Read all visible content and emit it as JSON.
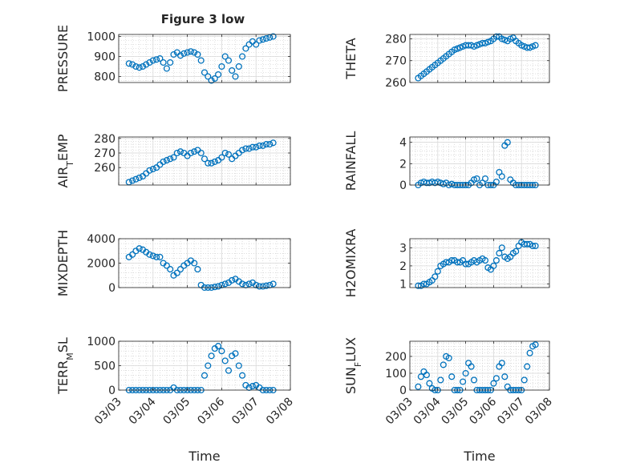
{
  "figure": {
    "title": "Figure 3 low"
  },
  "series_color": "#0072BD",
  "chart_data": [
    {
      "id": "pressure",
      "type": "scatter",
      "title": "Figure 3 low",
      "xlabel": "",
      "ylabel": "PRESSURE",
      "ylim": [
        770,
        1010
      ],
      "yticks": [
        800,
        900,
        1000
      ],
      "yticklabels": [
        "800",
        "900",
        "1000"
      ],
      "xlim": [
        "03/03",
        "03/08"
      ],
      "xticklabels": [
        "03/03",
        "03/04",
        "03/05",
        "03/06",
        "03/07",
        "03/08"
      ],
      "grid": true,
      "x": [
        3.3,
        3.4,
        3.5,
        3.6,
        3.7,
        3.8,
        3.9,
        4.0,
        4.1,
        4.2,
        4.3,
        4.4,
        4.5,
        4.6,
        4.7,
        4.8,
        4.9,
        5.0,
        5.1,
        5.2,
        5.3,
        5.4,
        5.5,
        5.6,
        5.7,
        5.8,
        5.9,
        6.0,
        6.1,
        6.2,
        6.3,
        6.4,
        6.5,
        6.6,
        6.7,
        6.8,
        6.9,
        7.0,
        7.1,
        7.2,
        7.3,
        7.4,
        7.5
      ],
      "y": [
        865,
        860,
        850,
        845,
        850,
        860,
        870,
        880,
        885,
        890,
        870,
        840,
        870,
        910,
        920,
        905,
        915,
        920,
        925,
        920,
        910,
        880,
        820,
        800,
        780,
        790,
        810,
        850,
        900,
        880,
        830,
        800,
        850,
        900,
        940,
        960,
        975,
        960,
        980,
        985,
        990,
        995,
        1000
      ]
    },
    {
      "id": "theta",
      "type": "scatter",
      "title": "",
      "xlabel": "",
      "ylabel": "THETA",
      "ylim": [
        260,
        282
      ],
      "yticks": [
        260,
        270,
        280
      ],
      "yticklabels": [
        "260",
        "270",
        "280"
      ],
      "xlim": [
        "03/03",
        "03/08"
      ],
      "xticklabels": [
        "03/03",
        "03/04",
        "03/05",
        "03/06",
        "03/07",
        "03/08"
      ],
      "grid": true,
      "x": [
        3.3,
        3.4,
        3.5,
        3.6,
        3.7,
        3.8,
        3.9,
        4.0,
        4.1,
        4.2,
        4.3,
        4.4,
        4.5,
        4.6,
        4.7,
        4.8,
        4.9,
        5.0,
        5.1,
        5.2,
        5.3,
        5.4,
        5.5,
        5.6,
        5.7,
        5.8,
        5.9,
        6.0,
        6.1,
        6.2,
        6.3,
        6.4,
        6.5,
        6.6,
        6.7,
        6.8,
        6.9,
        7.0,
        7.1,
        7.2,
        7.3,
        7.4,
        7.5
      ],
      "y": [
        262,
        263,
        264,
        265,
        266,
        267,
        268,
        269,
        270,
        271,
        272,
        273,
        274,
        275,
        275.5,
        276,
        276.5,
        277,
        277,
        277,
        276.5,
        277,
        277.5,
        278,
        278,
        278.5,
        279,
        280,
        281,
        281,
        280,
        279.5,
        279,
        280,
        280.5,
        279,
        278,
        277,
        276.5,
        276,
        276,
        276.5,
        277
      ]
    },
    {
      "id": "air-temp",
      "type": "scatter",
      "title": "",
      "xlabel": "",
      "ylabel": "AIR_TEMP",
      "ylim": [
        248,
        281
      ],
      "yticks": [
        260,
        270,
        280
      ],
      "yticklabels": [
        "260",
        "270",
        "280"
      ],
      "xlim": [
        "03/03",
        "03/08"
      ],
      "xticklabels": [
        "03/03",
        "03/04",
        "03/05",
        "03/06",
        "03/07",
        "03/08"
      ],
      "grid": true,
      "x": [
        3.3,
        3.4,
        3.5,
        3.6,
        3.7,
        3.8,
        3.9,
        4.0,
        4.1,
        4.2,
        4.3,
        4.4,
        4.5,
        4.6,
        4.7,
        4.8,
        4.9,
        5.0,
        5.1,
        5.2,
        5.3,
        5.4,
        5.5,
        5.6,
        5.7,
        5.8,
        5.9,
        6.0,
        6.1,
        6.2,
        6.3,
        6.4,
        6.5,
        6.6,
        6.7,
        6.8,
        6.9,
        7.0,
        7.1,
        7.2,
        7.3,
        7.4,
        7.5
      ],
      "y": [
        250,
        251,
        252,
        253,
        254,
        256,
        258,
        259,
        260,
        262,
        264,
        265,
        266,
        267,
        270,
        271,
        270,
        268,
        270,
        271,
        272,
        270,
        266,
        263,
        263,
        264,
        265,
        267,
        270,
        269,
        266,
        268,
        270,
        272,
        273,
        273,
        274,
        274,
        275,
        275,
        276,
        276,
        277
      ]
    },
    {
      "id": "rainfall",
      "type": "scatter",
      "title": "",
      "xlabel": "",
      "ylabel": "RAINFALL",
      "ylim": [
        0,
        4.5
      ],
      "yticks": [
        0,
        2,
        4
      ],
      "yticklabels": [
        "0",
        "2",
        "4"
      ],
      "xlim": [
        "03/03",
        "03/08"
      ],
      "xticklabels": [
        "03/03",
        "03/04",
        "03/05",
        "03/06",
        "03/07",
        "03/08"
      ],
      "grid": true,
      "x": [
        3.3,
        3.4,
        3.5,
        3.6,
        3.7,
        3.8,
        3.9,
        4.0,
        4.1,
        4.2,
        4.3,
        4.4,
        4.5,
        4.6,
        4.7,
        4.8,
        4.9,
        5.0,
        5.1,
        5.2,
        5.3,
        5.4,
        5.5,
        5.6,
        5.7,
        5.8,
        5.9,
        6.0,
        6.1,
        6.2,
        6.3,
        6.4,
        6.5,
        6.6,
        6.7,
        6.8,
        6.9,
        7.0,
        7.1,
        7.2,
        7.3,
        7.4,
        7.5
      ],
      "y": [
        0,
        0.2,
        0.3,
        0.2,
        0.2,
        0.3,
        0.2,
        0.3,
        0.2,
        0.1,
        0.2,
        0,
        0.1,
        0,
        0,
        0,
        0,
        0,
        0,
        0.2,
        0.5,
        0.6,
        0,
        0.2,
        0.6,
        0,
        0,
        0,
        0.3,
        1.2,
        0.8,
        3.7,
        4.0,
        0.5,
        0.2,
        0,
        0,
        0,
        0,
        0,
        0,
        0,
        0
      ]
    },
    {
      "id": "mixdepth",
      "type": "scatter",
      "title": "",
      "xlabel": "",
      "ylabel": "MIXDEPTH",
      "ylim": [
        0,
        4000
      ],
      "yticks": [
        0,
        2000,
        4000
      ],
      "yticklabels": [
        "0",
        "2000",
        "4000"
      ],
      "xlim": [
        "03/03",
        "03/08"
      ],
      "xticklabels": [
        "03/03",
        "03/04",
        "03/05",
        "03/06",
        "03/07",
        "03/08"
      ],
      "grid": true,
      "x": [
        3.3,
        3.4,
        3.5,
        3.6,
        3.7,
        3.8,
        3.9,
        4.0,
        4.1,
        4.2,
        4.3,
        4.4,
        4.5,
        4.6,
        4.7,
        4.8,
        4.9,
        5.0,
        5.1,
        5.2,
        5.3,
        5.4,
        5.5,
        5.6,
        5.7,
        5.8,
        5.9,
        6.0,
        6.1,
        6.2,
        6.3,
        6.4,
        6.5,
        6.6,
        6.7,
        6.8,
        6.9,
        7.0,
        7.1,
        7.2,
        7.3,
        7.4,
        7.5
      ],
      "y": [
        2500,
        2700,
        3000,
        3200,
        3100,
        2900,
        2700,
        2600,
        2500,
        2500,
        2000,
        1800,
        1500,
        1000,
        1200,
        1500,
        1800,
        2000,
        2200,
        2000,
        1500,
        200,
        0,
        0,
        0,
        50,
        100,
        200,
        300,
        400,
        600,
        700,
        500,
        300,
        200,
        300,
        400,
        200,
        100,
        100,
        150,
        200,
        300
      ]
    },
    {
      "id": "h2omixra",
      "type": "scatter",
      "title": "",
      "xlabel": "",
      "ylabel": "H2OMIXRA",
      "ylim": [
        0.8,
        3.5
      ],
      "yticks": [
        1,
        2,
        3
      ],
      "yticklabels": [
        "1",
        "2",
        "3"
      ],
      "xlim": [
        "03/03",
        "03/08"
      ],
      "xticklabels": [
        "03/03",
        "03/04",
        "03/05",
        "03/06",
        "03/07",
        "03/08"
      ],
      "grid": true,
      "x": [
        3.3,
        3.4,
        3.5,
        3.6,
        3.7,
        3.8,
        3.9,
        4.0,
        4.1,
        4.2,
        4.3,
        4.4,
        4.5,
        4.6,
        4.7,
        4.8,
        4.9,
        5.0,
        5.1,
        5.2,
        5.3,
        5.4,
        5.5,
        5.6,
        5.7,
        5.8,
        5.9,
        6.0,
        6.1,
        6.2,
        6.3,
        6.4,
        6.5,
        6.6,
        6.7,
        6.8,
        6.9,
        7.0,
        7.1,
        7.2,
        7.3,
        7.4,
        7.5
      ],
      "y": [
        0.9,
        0.9,
        1.0,
        1.0,
        1.1,
        1.2,
        1.4,
        1.7,
        2.0,
        2.1,
        2.2,
        2.2,
        2.3,
        2.3,
        2.2,
        2.2,
        2.3,
        2.1,
        2.1,
        2.2,
        2.3,
        2.2,
        2.3,
        2.4,
        2.3,
        1.9,
        1.8,
        2.0,
        2.3,
        2.7,
        3.0,
        2.5,
        2.4,
        2.5,
        2.7,
        2.8,
        3.1,
        3.3,
        3.2,
        3.2,
        3.2,
        3.1,
        3.1
      ]
    },
    {
      "id": "terr-msl",
      "type": "scatter",
      "title": "",
      "xlabel": "Time",
      "ylabel": "TERR_MSL",
      "ylim": [
        0,
        1000
      ],
      "yticks": [
        0,
        500,
        1000
      ],
      "yticklabels": [
        "0",
        "500",
        "1000"
      ],
      "xlim": [
        "03/03",
        "03/08"
      ],
      "xticklabels": [
        "03/03",
        "03/04",
        "03/05",
        "03/06",
        "03/07",
        "03/08"
      ],
      "grid": true,
      "x": [
        3.3,
        3.4,
        3.5,
        3.6,
        3.7,
        3.8,
        3.9,
        4.0,
        4.1,
        4.2,
        4.3,
        4.4,
        4.5,
        4.6,
        4.7,
        4.8,
        4.9,
        5.0,
        5.1,
        5.2,
        5.3,
        5.4,
        5.5,
        5.6,
        5.7,
        5.8,
        5.9,
        6.0,
        6.1,
        6.2,
        6.3,
        6.4,
        6.5,
        6.6,
        6.7,
        6.8,
        6.9,
        7.0,
        7.1,
        7.2,
        7.3,
        7.4,
        7.5
      ],
      "y": [
        0,
        0,
        0,
        0,
        0,
        0,
        0,
        0,
        0,
        0,
        0,
        0,
        0,
        50,
        0,
        0,
        0,
        0,
        0,
        0,
        0,
        0,
        300,
        500,
        700,
        850,
        900,
        800,
        600,
        400,
        700,
        750,
        500,
        300,
        100,
        50,
        80,
        100,
        50,
        0,
        0,
        0,
        0
      ]
    },
    {
      "id": "sun-flux",
      "type": "scatter",
      "title": "",
      "xlabel": "Time",
      "ylabel": "SUN_FLUX",
      "ylim": [
        0,
        290
      ],
      "yticks": [
        0,
        100,
        200
      ],
      "yticklabels": [
        "0",
        "100",
        "200"
      ],
      "xlim": [
        "03/03",
        "03/08"
      ],
      "xticklabels": [
        "03/03",
        "03/04",
        "03/05",
        "03/06",
        "03/07",
        "03/08"
      ],
      "grid": true,
      "x": [
        3.3,
        3.4,
        3.5,
        3.6,
        3.7,
        3.8,
        3.9,
        4.0,
        4.1,
        4.2,
        4.3,
        4.4,
        4.5,
        4.6,
        4.7,
        4.8,
        4.9,
        5.0,
        5.1,
        5.2,
        5.3,
        5.4,
        5.5,
        5.6,
        5.7,
        5.8,
        5.9,
        6.0,
        6.1,
        6.2,
        6.3,
        6.4,
        6.5,
        6.6,
        6.7,
        6.8,
        6.9,
        7.0,
        7.1,
        7.2,
        7.3,
        7.4,
        7.5
      ],
      "y": [
        20,
        80,
        110,
        90,
        40,
        10,
        0,
        0,
        60,
        150,
        200,
        190,
        80,
        0,
        0,
        0,
        50,
        100,
        160,
        140,
        60,
        0,
        0,
        0,
        0,
        0,
        0,
        40,
        70,
        140,
        160,
        80,
        20,
        0,
        0,
        0,
        0,
        0,
        60,
        140,
        220,
        260,
        270
      ]
    }
  ]
}
